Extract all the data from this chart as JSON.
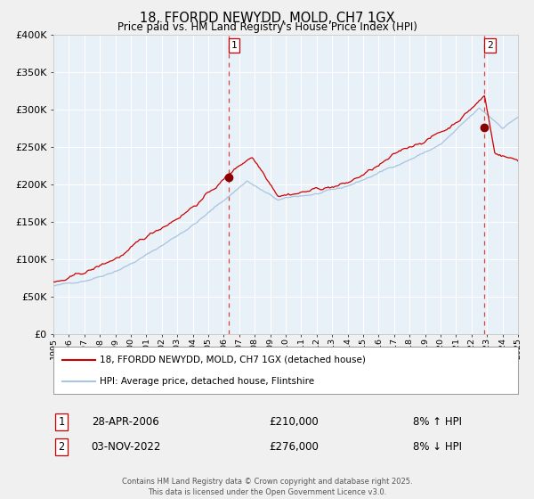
{
  "title": "18, FFORDD NEWYDD, MOLD, CH7 1GX",
  "subtitle": "Price paid vs. HM Land Registry's House Price Index (HPI)",
  "bg_color": "#f0f0f0",
  "plot_bg_color": "#e8f0f8",
  "grid_color": "#ffffff",
  "hpi_color": "#a8c4e0",
  "price_color": "#cc0000",
  "dashed_line_color": "#dd4444",
  "marker_color": "#880000",
  "marker1_x": 2006.33,
  "marker1_y": 210000,
  "marker2_x": 2022.84,
  "marker2_y": 276000,
  "sale1_date": "28-APR-2006",
  "sale1_price": "£210,000",
  "sale1_hpi": "8% ↑ HPI",
  "sale2_date": "03-NOV-2022",
  "sale2_price": "£276,000",
  "sale2_hpi": "8% ↓ HPI",
  "legend_label1": "18, FFORDD NEWYDD, MOLD, CH7 1GX (detached house)",
  "legend_label2": "HPI: Average price, detached house, Flintshire",
  "xmin": 1995,
  "xmax": 2025,
  "ymin": 0,
  "ymax": 400000,
  "yticks": [
    0,
    50000,
    100000,
    150000,
    200000,
    250000,
    300000,
    350000,
    400000
  ],
  "ytick_labels": [
    "£0",
    "£50K",
    "£100K",
    "£150K",
    "£200K",
    "£250K",
    "£300K",
    "£350K",
    "£400K"
  ],
  "footer_text": "Contains HM Land Registry data © Crown copyright and database right 2025.\nThis data is licensed under the Open Government Licence v3.0.",
  "label_box_color": "#ffffff",
  "label_box_edge": "#cc0000"
}
